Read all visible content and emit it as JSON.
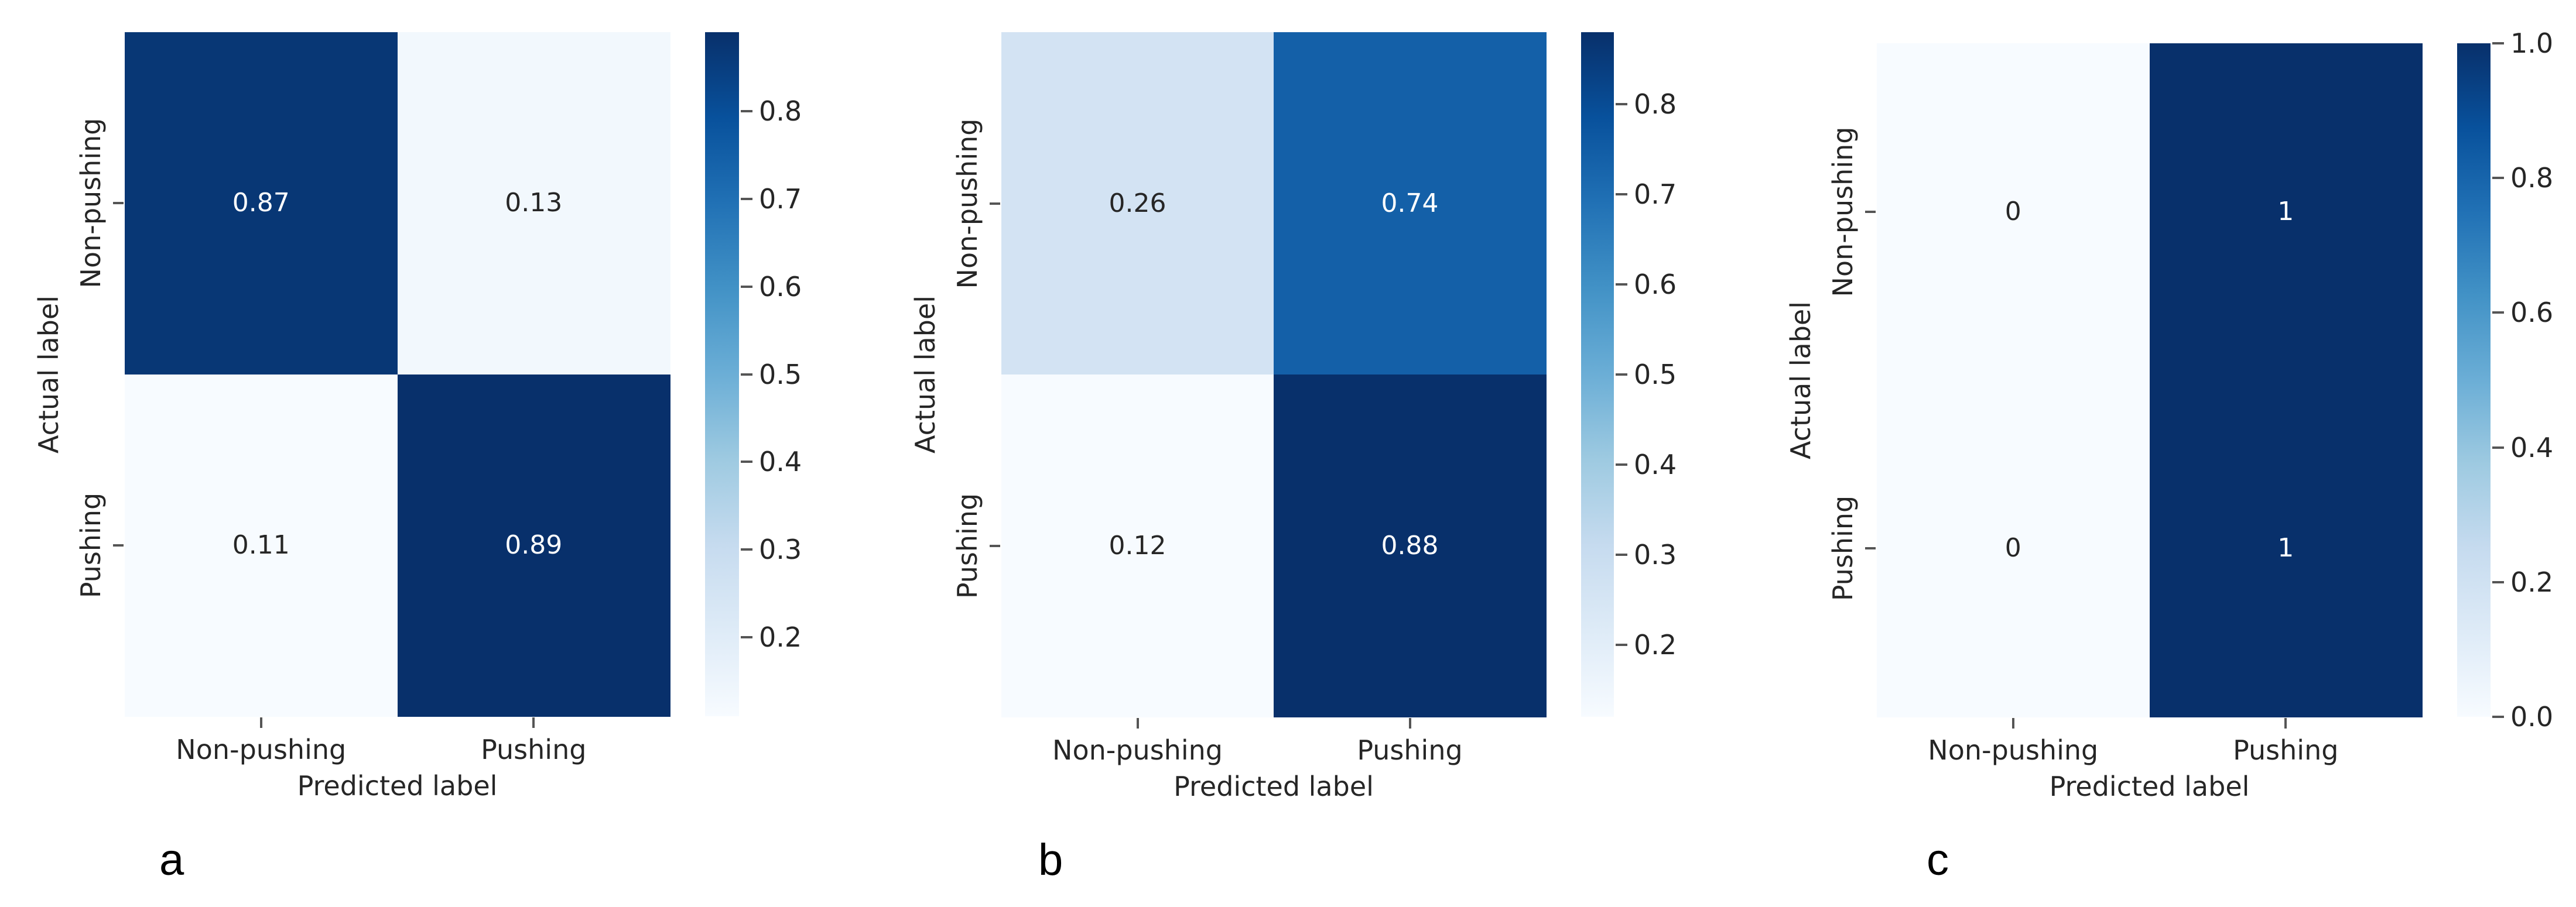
{
  "chart_data": [
    {
      "type": "heatmap",
      "panel_label": "a",
      "title": "",
      "xlabel": "Predicted label",
      "ylabel": "Actual label",
      "categories_x": [
        "Non-pushing",
        "Pushing"
      ],
      "categories_y": [
        "Non-pushing",
        "Pushing"
      ],
      "values": [
        [
          0.87,
          0.13
        ],
        [
          0.11,
          0.89
        ]
      ],
      "value_labels": [
        [
          "0.87",
          "0.13"
        ],
        [
          "0.11",
          "0.89"
        ]
      ],
      "vmin": 0.11,
      "vmax": 0.89,
      "colorbar_ticks": [
        0.8,
        0.7,
        0.6,
        0.5,
        0.4,
        0.3,
        0.2
      ],
      "colorbar_tick_labels": [
        "0.8",
        "0.7",
        "0.6",
        "0.5",
        "0.4",
        "0.3",
        "0.2"
      ],
      "colormap": "Blues",
      "legend_position": "right-colorbar",
      "grid": false
    },
    {
      "type": "heatmap",
      "panel_label": "b",
      "title": "",
      "xlabel": "Predicted label",
      "ylabel": "Actual label",
      "categories_x": [
        "Non-pushing",
        "Pushing"
      ],
      "categories_y": [
        "Non-pushing",
        "Pushing"
      ],
      "values": [
        [
          0.26,
          0.74
        ],
        [
          0.12,
          0.88
        ]
      ],
      "value_labels": [
        [
          "0.26",
          "0.74"
        ],
        [
          "0.12",
          "0.88"
        ]
      ],
      "vmin": 0.12,
      "vmax": 0.88,
      "colorbar_ticks": [
        0.8,
        0.7,
        0.6,
        0.5,
        0.4,
        0.3,
        0.2
      ],
      "colorbar_tick_labels": [
        "0.8",
        "0.7",
        "0.6",
        "0.5",
        "0.4",
        "0.3",
        "0.2"
      ],
      "colormap": "Blues",
      "legend_position": "right-colorbar",
      "grid": false
    },
    {
      "type": "heatmap",
      "panel_label": "c",
      "title": "",
      "xlabel": "Predicted label",
      "ylabel": "Actual label",
      "categories_x": [
        "Non-pushing",
        "Pushing"
      ],
      "categories_y": [
        "Non-pushing",
        "Pushing"
      ],
      "values": [
        [
          0,
          1
        ],
        [
          0,
          1
        ]
      ],
      "value_labels": [
        [
          "0",
          "1"
        ],
        [
          "0",
          "1"
        ]
      ],
      "vmin": 0.0,
      "vmax": 1.0,
      "colorbar_ticks": [
        1.0,
        0.8,
        0.6,
        0.4,
        0.2,
        0.0
      ],
      "colorbar_tick_labels": [
        "1.0",
        "0.8",
        "0.6",
        "0.4",
        "0.2",
        "0.0"
      ],
      "colormap": "Blues",
      "legend_position": "right-colorbar",
      "grid": false
    }
  ],
  "style": {
    "colormap_stops": [
      "#f7fbff",
      "#deebf7",
      "#c6dbef",
      "#9ecae1",
      "#6baed6",
      "#4292c6",
      "#2171b5",
      "#08519c",
      "#08306b"
    ],
    "text_color": "#262626",
    "tick_mark_color": "#555555",
    "annotation_color_dark": "#262626",
    "annotation_color_light": "#ffffff",
    "background": "#ffffff"
  }
}
